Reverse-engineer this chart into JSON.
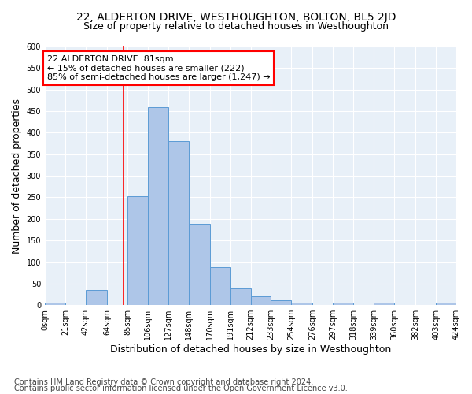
{
  "title": "22, ALDERTON DRIVE, WESTHOUGHTON, BOLTON, BL5 2JD",
  "subtitle": "Size of property relative to detached houses in Westhoughton",
  "xlabel": "Distribution of detached houses by size in Westhoughton",
  "ylabel": "Number of detached properties",
  "footer_line1": "Contains HM Land Registry data © Crown copyright and database right 2024.",
  "footer_line2": "Contains public sector information licensed under the Open Government Licence v3.0.",
  "annotation_line1": "22 ALDERTON DRIVE: 81sqm",
  "annotation_line2": "← 15% of detached houses are smaller (222)",
  "annotation_line3": "85% of semi-detached houses are larger (1,247) →",
  "property_size": 81,
  "bar_edges": [
    0,
    21,
    42,
    64,
    85,
    106,
    127,
    148,
    170,
    191,
    212,
    233,
    254,
    276,
    297,
    318,
    339,
    360,
    382,
    403,
    424
  ],
  "bar_heights": [
    5,
    0,
    35,
    0,
    253,
    460,
    380,
    188,
    88,
    38,
    20,
    11,
    6,
    0,
    5,
    0,
    5,
    0,
    0,
    5
  ],
  "bar_color": "#aec6e8",
  "bar_edge_color": "#5b9bd5",
  "marker_color": "#ff0000",
  "bg_color": "#e8f0f8",
  "ylim": [
    0,
    600
  ],
  "yticks": [
    0,
    50,
    100,
    150,
    200,
    250,
    300,
    350,
    400,
    450,
    500,
    550,
    600
  ],
  "xtick_labels": [
    "0sqm",
    "21sqm",
    "42sqm",
    "64sqm",
    "85sqm",
    "106sqm",
    "127sqm",
    "148sqm",
    "170sqm",
    "191sqm",
    "212sqm",
    "233sqm",
    "254sqm",
    "276sqm",
    "297sqm",
    "318sqm",
    "339sqm",
    "360sqm",
    "382sqm",
    "403sqm",
    "424sqm"
  ],
  "title_fontsize": 10,
  "subtitle_fontsize": 9,
  "ylabel_fontsize": 9,
  "xlabel_fontsize": 9,
  "tick_fontsize": 7,
  "footer_fontsize": 7,
  "annotation_fontsize": 8
}
